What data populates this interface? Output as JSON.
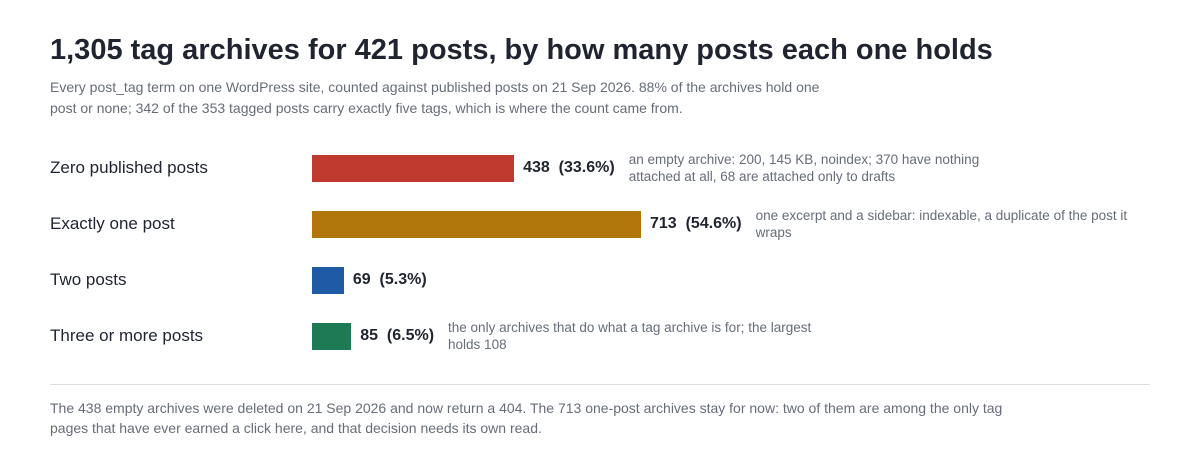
{
  "chart_data": {
    "type": "bar",
    "orientation": "horizontal",
    "title": "1,305 tag archives for 421 posts, by how many posts each one holds",
    "subtitle": "Every post_tag term on one WordPress site, counted against published posts on 21 Sep 2026. 88% of the archives hold one post or none; 342 of the 353 tagged posts carry exactly five tags, which is where the count came from.",
    "categories": [
      "Zero published posts",
      "Exactly one post",
      "Two posts",
      "Three or more posts"
    ],
    "values": [
      438,
      713,
      69,
      85
    ],
    "value_labels": [
      "438  (33.6%)",
      "713  (54.6%)",
      "69  (5.3%)",
      "85  (6.5%)"
    ],
    "colors": [
      "#c0392f",
      "#b0760b",
      "#1f5aa6",
      "#1d7a55"
    ],
    "annotations": [
      "an empty archive: 200, 145 KB, noindex; 370 have nothing attached at all, 68 are attached only to drafts",
      "one excerpt and a sidebar: indexable, a duplicate of the post it wraps",
      null,
      "the only archives that do what a tag archive is for; the largest holds 108"
    ],
    "footnote": "The 438 empty archives were deleted on 21 Sep 2026 and now return a 404. The 713 one-post archives stay for now: two of them are among the only tag pages that have ever earned a click here, and that decision needs its own read."
  }
}
